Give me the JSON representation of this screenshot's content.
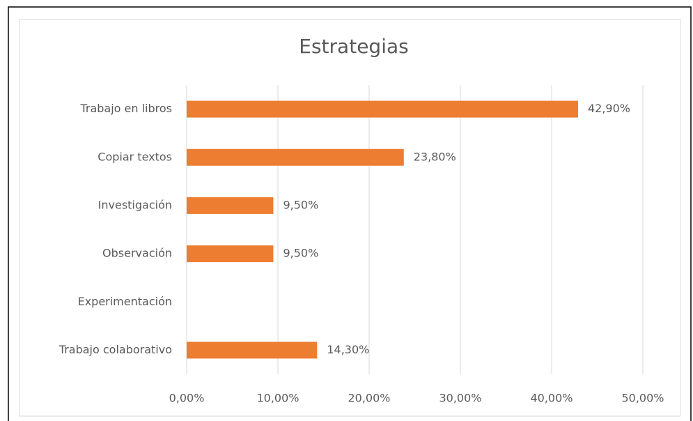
{
  "chart_data": {
    "type": "hbar",
    "title": "Estrategias",
    "categories": [
      "Trabajo en libros",
      "Copiar textos",
      "Investigación",
      "Observación",
      "Experimentación",
      "Trabajo colaborativo"
    ],
    "values": [
      42.9,
      23.8,
      9.5,
      9.5,
      null,
      14.3
    ],
    "value_labels": [
      "42,90%",
      "23,80%",
      "9,50%",
      "9,50%",
      null,
      "14,30%"
    ],
    "color": "#ed7d31",
    "xlim": [
      0,
      50
    ],
    "xticks": [
      {
        "value": 0,
        "label": "0,00%"
      },
      {
        "value": 10,
        "label": "10,00%"
      },
      {
        "value": 20,
        "label": "20,00%"
      },
      {
        "value": 30,
        "label": "30,00%"
      },
      {
        "value": 40,
        "label": "40,00%"
      },
      {
        "value": 50,
        "label": "50,00%"
      }
    ],
    "grid": true
  }
}
